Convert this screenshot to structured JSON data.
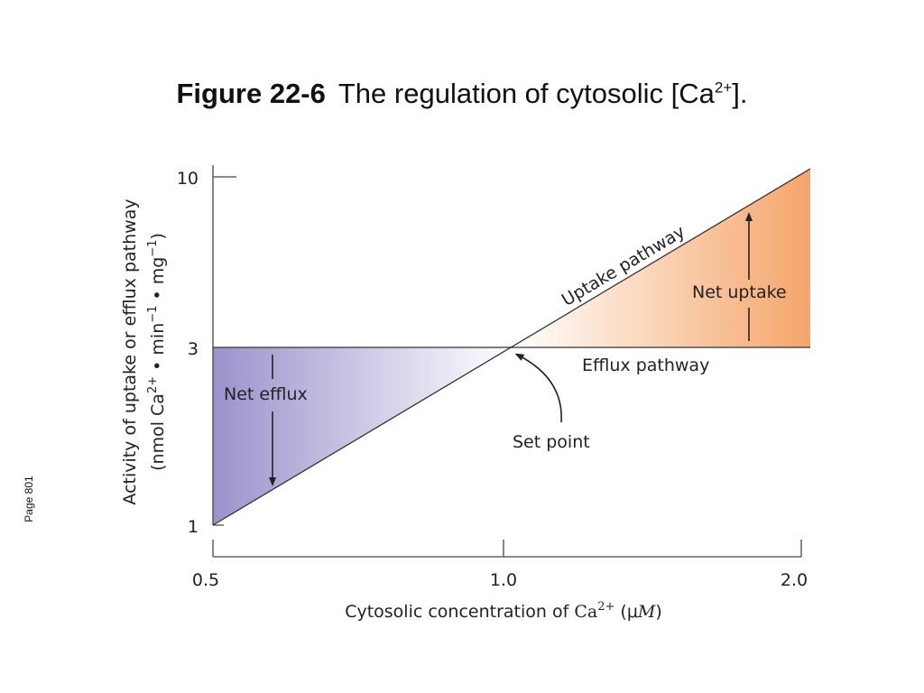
{
  "title": {
    "figure_number": "Figure 22-6",
    "text": "The regulation of cytosolic",
    "ion_prefix": "[Ca",
    "ion_charge": "2+",
    "ion_suffix": "]."
  },
  "page_note": "Page 801",
  "diagram": {
    "y_axis_label_line1": "Activity of uptake or efflux pathway",
    "y_axis_label_line2_prefix": "(nmol Ca",
    "y_axis_label_line2_sup1": "2+",
    "y_axis_label_line2_mid": " • min",
    "y_axis_label_line2_sup2": "−1",
    "y_axis_label_line2_mid2": " • mg",
    "y_axis_label_line2_sup3": "−1",
    "y_axis_label_line2_suffix": ")",
    "y_ticks": [
      "10",
      "3",
      "1"
    ],
    "x_ticks": [
      "0.5",
      "1.0",
      "2.0"
    ],
    "x_axis_label_prefix": "Cytosolic concentration of ",
    "x_axis_label_ion": "Ca",
    "x_axis_label_sup": "2+",
    "x_axis_label_unit_open": " (μ",
    "x_axis_label_unit_m": "M",
    "x_axis_label_unit_close": ")",
    "labels": {
      "uptake_pathway": "Uptake pathway",
      "efflux_pathway": "Efflux pathway",
      "net_uptake": "Net uptake",
      "net_efflux": "Net efflux",
      "set_point": "Set point"
    },
    "colors": {
      "efflux_region": "#9a93cc",
      "uptake_region": "#f5a56b",
      "line": "#333333"
    }
  }
}
